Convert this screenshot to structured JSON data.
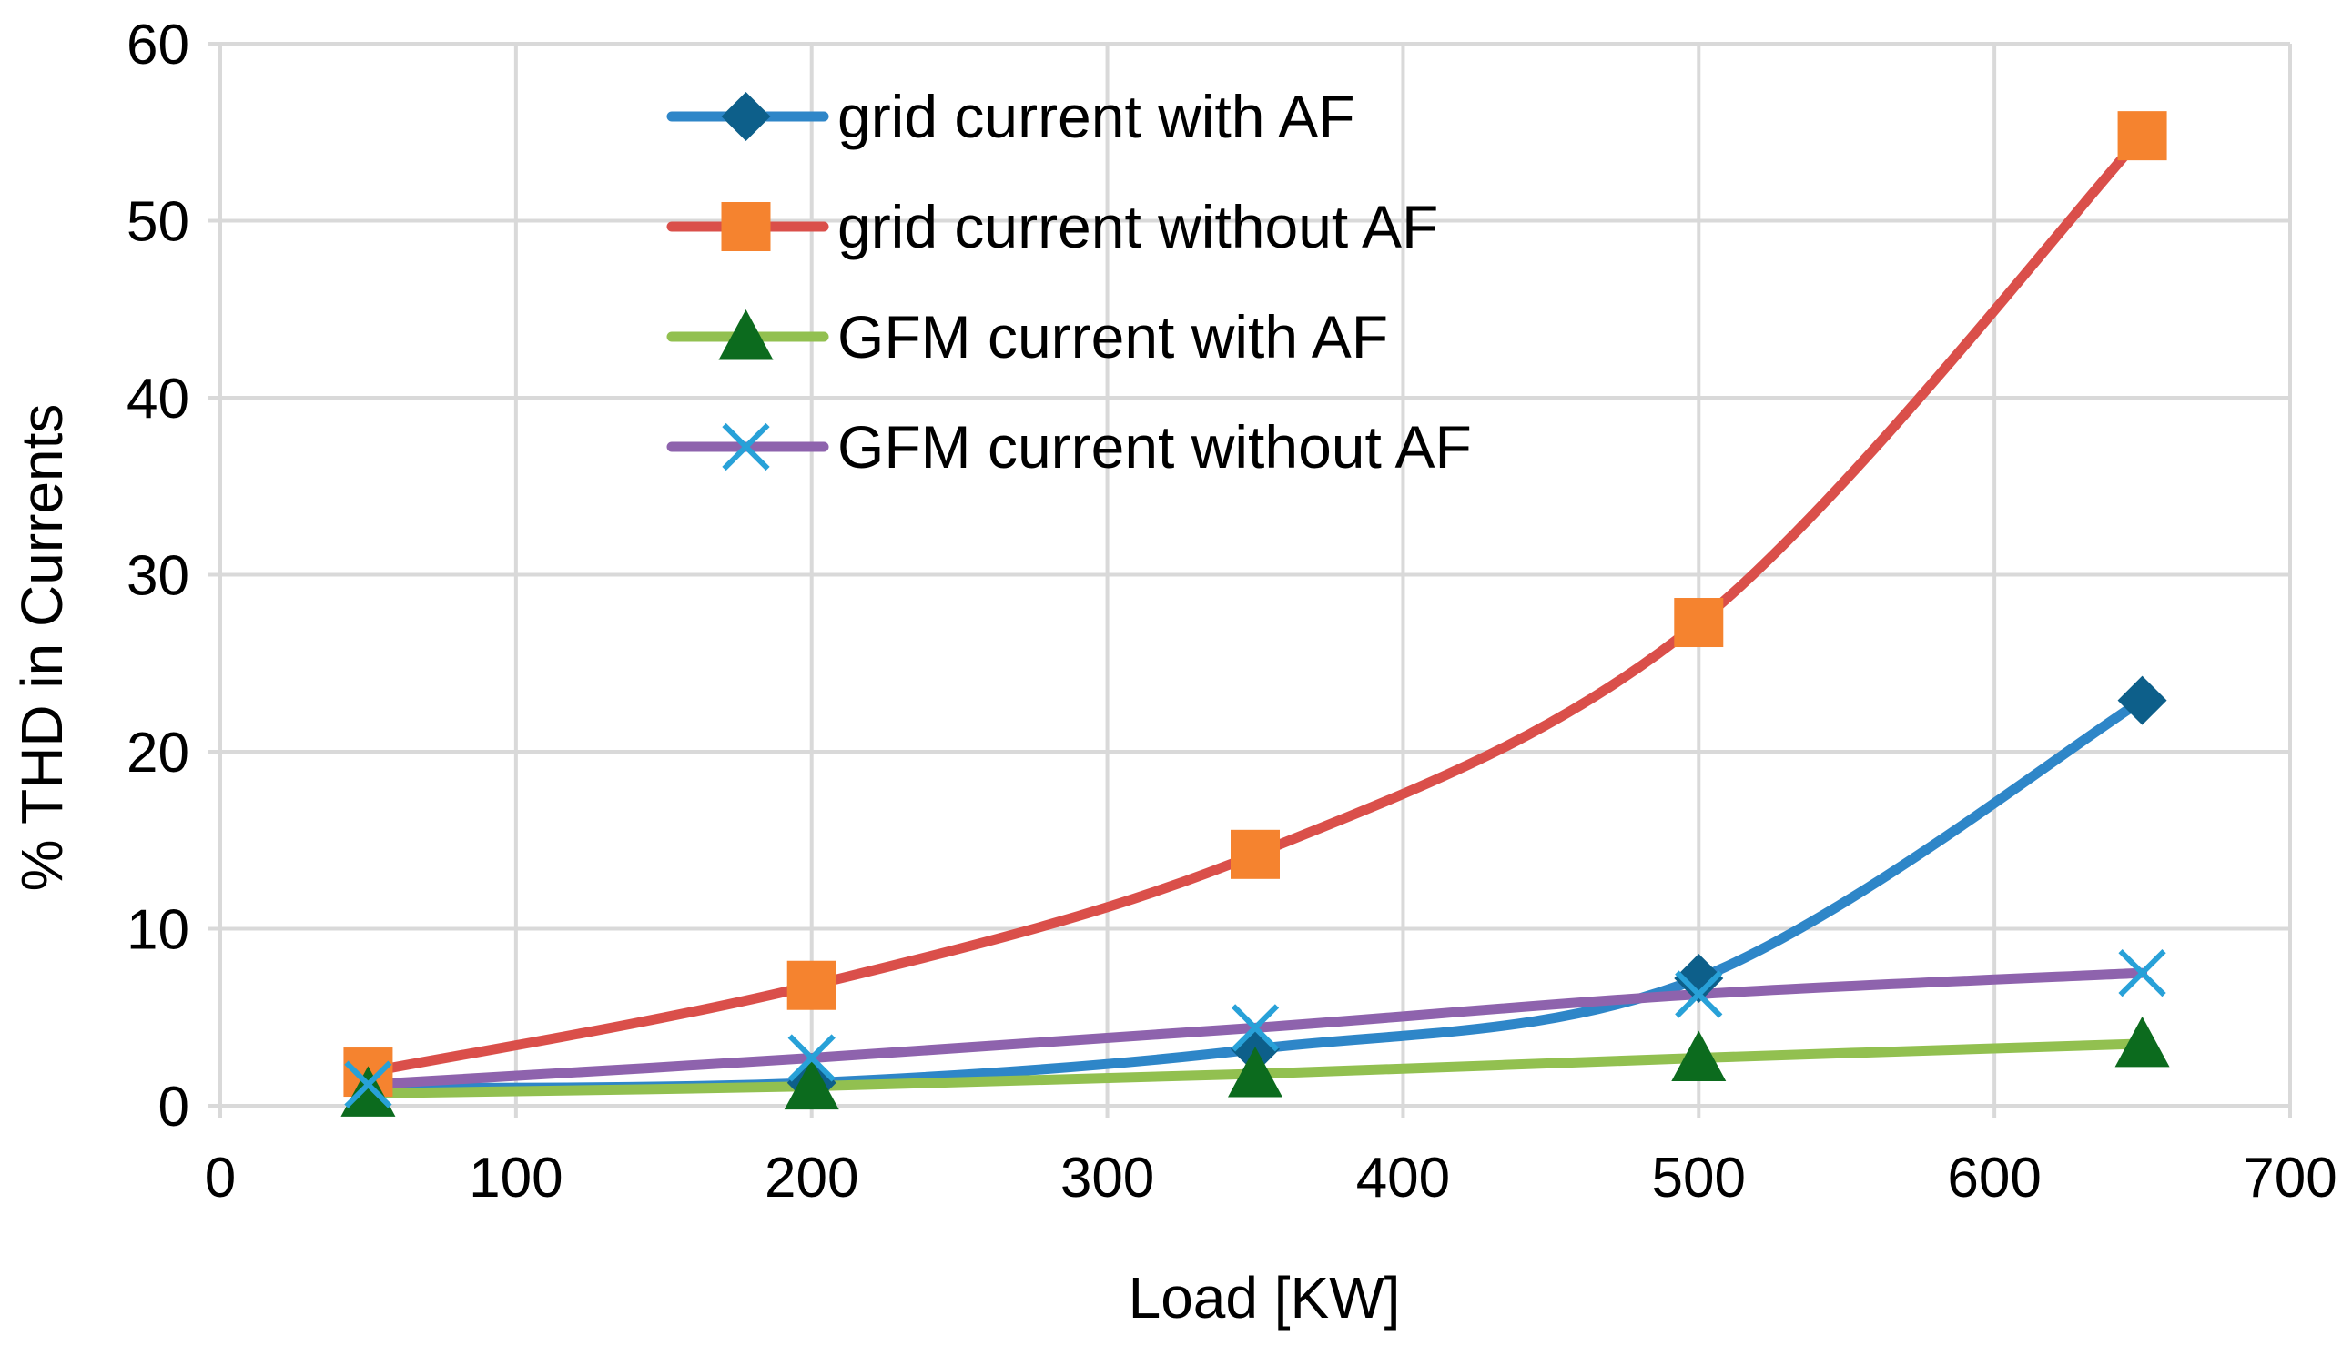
{
  "chart_data": {
    "type": "line",
    "title": "",
    "xlabel": "Load  [KW]",
    "ylabel": "% THD in Currents",
    "xlim": [
      0,
      700
    ],
    "ylim": [
      0,
      60
    ],
    "x_ticks": [
      0,
      100,
      200,
      300,
      400,
      500,
      600,
      700
    ],
    "y_ticks": [
      0,
      10,
      20,
      30,
      40,
      50,
      60
    ],
    "grid": true,
    "smooth": true,
    "legend_position": "top-center (inside plot)",
    "x": [
      50,
      200,
      350,
      500,
      650
    ],
    "series": [
      {
        "name": "grid current with AF",
        "values": [
          1.0,
          1.3,
          3.2,
          7.2,
          22.9
        ],
        "line_color": "#2E86C8",
        "marker": "diamond",
        "marker_color": "#0D5F8A"
      },
      {
        "name": "grid current without AF",
        "values": [
          1.9,
          6.8,
          14.2,
          27.3,
          54.8
        ],
        "line_color": "#DA4F4A",
        "marker": "square",
        "marker_color": "#F5832F"
      },
      {
        "name": "GFM current with AF",
        "values": [
          0.7,
          1.1,
          1.8,
          2.7,
          3.5
        ],
        "line_color": "#92C050",
        "marker": "triangle",
        "marker_color": "#0C6B1E"
      },
      {
        "name": "GFM current without AF",
        "values": [
          1.2,
          2.7,
          4.4,
          6.3,
          7.5
        ],
        "line_color": "#8E63AD",
        "marker": "x",
        "marker_color": "#28A1D8"
      }
    ]
  }
}
